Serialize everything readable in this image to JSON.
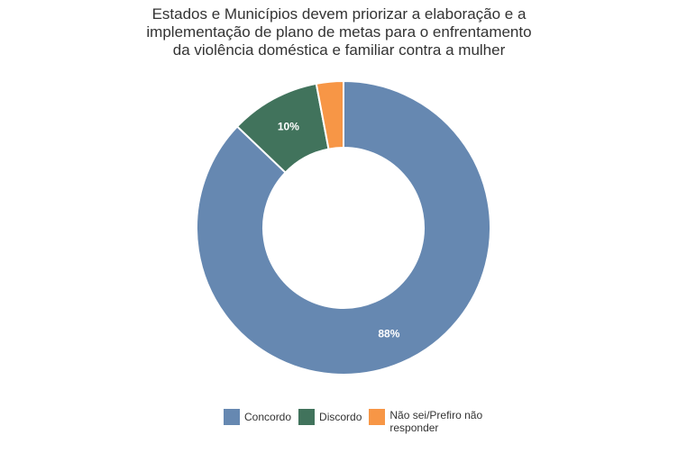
{
  "title_lines": [
    "Estados e Municípios devem priorizar a elaboração e a",
    "implementação de plano de metas para o enfrentamento",
    "da violência doméstica e familiar contra a mulher"
  ],
  "chart_data": {
    "type": "pie",
    "style": "donut",
    "title": "Estados e Municípios devem priorizar a elaboração e a implementação de plano de metas para o enfrentamento da violência doméstica e familiar contra a mulher",
    "slices": [
      {
        "label": "Concordo",
        "value": 88,
        "data_label": "88%",
        "color": "#6688b1"
      },
      {
        "label": "Discordo",
        "value": 10,
        "data_label": "10%",
        "color": "#41735c"
      },
      {
        "label": "Não sei/Prefiro não responder",
        "value": 3,
        "data_label": "",
        "color": "#f79646"
      }
    ],
    "legend_position": "bottom"
  },
  "legend": [
    {
      "label": "Concordo",
      "color": "#6688b1"
    },
    {
      "label": "Discordo",
      "color": "#41735c"
    },
    {
      "label": "Não sei/Prefiro não responder",
      "color": "#f79646"
    }
  ]
}
